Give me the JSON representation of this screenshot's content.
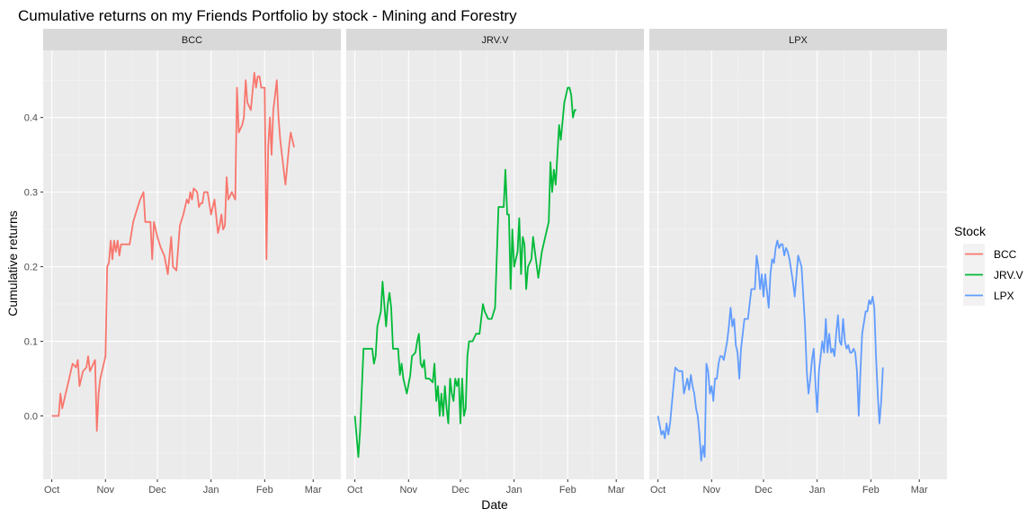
{
  "chart_data": {
    "type": "line",
    "title": "Cumulative returns on my Friends Portfolio by stock - Mining and Forestry",
    "xlabel": "Date",
    "ylabel": "Cumulative returns",
    "x_tick_labels": [
      "Oct",
      "Nov",
      "Dec",
      "Jan",
      "Feb",
      "Mar"
    ],
    "y_ticks": [
      0.0,
      0.1,
      0.2,
      0.3,
      0.4
    ],
    "y_tick_labels": [
      "0.0",
      "0.1",
      "0.2",
      "0.3",
      "0.4"
    ],
    "ylim": [
      -0.085,
      0.49
    ],
    "xlim_days": [
      -5,
      167
    ],
    "grid": true,
    "legend": {
      "title": "Stock",
      "position": "right"
    },
    "colors": {
      "BCC": "#F8766D",
      "JRV.V": "#00BA38",
      "LPX": "#619CFF"
    },
    "series": [
      {
        "name": "BCC",
        "points": [
          [
            0,
            0.0
          ],
          [
            4,
            0.0
          ],
          [
            5,
            0.03
          ],
          [
            6,
            0.01
          ],
          [
            8,
            0.03
          ],
          [
            10,
            0.05
          ],
          [
            12,
            0.07
          ],
          [
            14,
            0.065
          ],
          [
            15,
            0.075
          ],
          [
            16,
            0.04
          ],
          [
            18,
            0.06
          ],
          [
            20,
            0.065
          ],
          [
            21,
            0.08
          ],
          [
            22,
            0.06
          ],
          [
            25,
            0.075
          ],
          [
            26,
            -0.02
          ],
          [
            27,
            0.03
          ],
          [
            28,
            0.05
          ],
          [
            30,
            0.07
          ],
          [
            31,
            0.08
          ],
          [
            32,
            0.2
          ],
          [
            33,
            0.205
          ],
          [
            34,
            0.235
          ],
          [
            35,
            0.21
          ],
          [
            36,
            0.235
          ],
          [
            37,
            0.22
          ],
          [
            38,
            0.235
          ],
          [
            39,
            0.215
          ],
          [
            40,
            0.23
          ],
          [
            42,
            0.23
          ],
          [
            45,
            0.23
          ],
          [
            47,
            0.26
          ],
          [
            49,
            0.275
          ],
          [
            51,
            0.29
          ],
          [
            53,
            0.3
          ],
          [
            54,
            0.26
          ],
          [
            57,
            0.26
          ],
          [
            58,
            0.21
          ],
          [
            59,
            0.26
          ],
          [
            61,
            0.24
          ],
          [
            63,
            0.225
          ],
          [
            65,
            0.215
          ],
          [
            67,
            0.19
          ],
          [
            69,
            0.24
          ],
          [
            70,
            0.2
          ],
          [
            72,
            0.195
          ],
          [
            74,
            0.255
          ],
          [
            76,
            0.27
          ],
          [
            78,
            0.29
          ],
          [
            79,
            0.285
          ],
          [
            80,
            0.3
          ],
          [
            81,
            0.29
          ],
          [
            82,
            0.305
          ],
          [
            84,
            0.3
          ],
          [
            85,
            0.28
          ],
          [
            86,
            0.285
          ],
          [
            87,
            0.285
          ],
          [
            88,
            0.3
          ],
          [
            90,
            0.3
          ],
          [
            92,
            0.27
          ],
          [
            94,
            0.29
          ],
          [
            96,
            0.245
          ],
          [
            97,
            0.255
          ],
          [
            98,
            0.27
          ],
          [
            99,
            0.25
          ],
          [
            100,
            0.255
          ],
          [
            101,
            0.32
          ],
          [
            102,
            0.29
          ],
          [
            104,
            0.3
          ],
          [
            106,
            0.29
          ],
          [
            107,
            0.44
          ],
          [
            108,
            0.38
          ],
          [
            110,
            0.39
          ],
          [
            111,
            0.4
          ],
          [
            112,
            0.45
          ],
          [
            113,
            0.42
          ],
          [
            115,
            0.41
          ],
          [
            117,
            0.46
          ],
          [
            118,
            0.44
          ],
          [
            119,
            0.455
          ],
          [
            120,
            0.455
          ],
          [
            121,
            0.44
          ],
          [
            123,
            0.44
          ],
          [
            124,
            0.21
          ],
          [
            125,
            0.36
          ],
          [
            126,
            0.4
          ],
          [
            127,
            0.35
          ],
          [
            128,
            0.41
          ],
          [
            129,
            0.43
          ],
          [
            130,
            0.45
          ],
          [
            131,
            0.4
          ],
          [
            132,
            0.37
          ],
          [
            135,
            0.31
          ],
          [
            137,
            0.36
          ],
          [
            138,
            0.38
          ],
          [
            140,
            0.36
          ]
        ]
      },
      {
        "name": "JRV.V",
        "points": [
          [
            0,
            0.0
          ],
          [
            2,
            -0.055
          ],
          [
            3,
            -0.02
          ],
          [
            5,
            0.09
          ],
          [
            8,
            0.09
          ],
          [
            10,
            0.09
          ],
          [
            11,
            0.07
          ],
          [
            12,
            0.08
          ],
          [
            13,
            0.12
          ],
          [
            15,
            0.14
          ],
          [
            16,
            0.18
          ],
          [
            17,
            0.15
          ],
          [
            18,
            0.12
          ],
          [
            19,
            0.15
          ],
          [
            20,
            0.165
          ],
          [
            21,
            0.145
          ],
          [
            22,
            0.09
          ],
          [
            25,
            0.09
          ],
          [
            26,
            0.055
          ],
          [
            27,
            0.07
          ],
          [
            28,
            0.05
          ],
          [
            30,
            0.03
          ],
          [
            32,
            0.055
          ],
          [
            33,
            0.08
          ],
          [
            35,
            0.085
          ],
          [
            36,
            0.1
          ],
          [
            37,
            0.11
          ],
          [
            38,
            0.07
          ],
          [
            39,
            0.065
          ],
          [
            40,
            0.075
          ],
          [
            41,
            0.05
          ],
          [
            43,
            0.05
          ],
          [
            45,
            0.045
          ],
          [
            46,
            0.07
          ],
          [
            47,
            0.02
          ],
          [
            48,
            0.04
          ],
          [
            49,
            0.0
          ],
          [
            50,
            0.03
          ],
          [
            51,
            0.0
          ],
          [
            52,
            0.04
          ],
          [
            53,
            0.01
          ],
          [
            54,
            -0.01
          ],
          [
            55,
            0.05
          ],
          [
            56,
            0.03
          ],
          [
            57,
            0.02
          ],
          [
            58,
            0.05
          ],
          [
            59,
            0.04
          ],
          [
            60,
            0.05
          ],
          [
            61,
            -0.01
          ],
          [
            62,
            0.05
          ],
          [
            63,
            0.0
          ],
          [
            64,
            0.01
          ],
          [
            65,
            0.08
          ],
          [
            66,
            0.1
          ],
          [
            68,
            0.1
          ],
          [
            70,
            0.11
          ],
          [
            72,
            0.11
          ],
          [
            74,
            0.15
          ],
          [
            75,
            0.14
          ],
          [
            77,
            0.13
          ],
          [
            79,
            0.13
          ],
          [
            81,
            0.145
          ],
          [
            83,
            0.28
          ],
          [
            86,
            0.28
          ],
          [
            87,
            0.33
          ],
          [
            88,
            0.27
          ],
          [
            89,
            0.27
          ],
          [
            90,
            0.17
          ],
          [
            91,
            0.25
          ],
          [
            92,
            0.2
          ],
          [
            93,
            0.21
          ],
          [
            94,
            0.22
          ],
          [
            95,
            0.265
          ],
          [
            96,
            0.19
          ],
          [
            97,
            0.24
          ],
          [
            98,
            0.23
          ],
          [
            99,
            0.17
          ],
          [
            100,
            0.2
          ],
          [
            102,
            0.21
          ],
          [
            103,
            0.24
          ],
          [
            104,
            0.22
          ],
          [
            106,
            0.185
          ],
          [
            108,
            0.22
          ],
          [
            110,
            0.24
          ],
          [
            112,
            0.26
          ],
          [
            113,
            0.34
          ],
          [
            114,
            0.3
          ],
          [
            115,
            0.33
          ],
          [
            116,
            0.31
          ],
          [
            118,
            0.39
          ],
          [
            119,
            0.37
          ],
          [
            121,
            0.42
          ],
          [
            123,
            0.44
          ],
          [
            124,
            0.44
          ],
          [
            125,
            0.43
          ],
          [
            126,
            0.4
          ],
          [
            127,
            0.41
          ],
          [
            128,
            0.41
          ]
        ]
      },
      {
        "name": "LPX",
        "points": [
          [
            0,
            0.0
          ],
          [
            2,
            -0.025
          ],
          [
            3,
            -0.02
          ],
          [
            4,
            -0.03
          ],
          [
            5,
            -0.01
          ],
          [
            6,
            -0.025
          ],
          [
            7,
            -0.01
          ],
          [
            8,
            0.015
          ],
          [
            9,
            0.04
          ],
          [
            10,
            0.065
          ],
          [
            12,
            0.06
          ],
          [
            14,
            0.06
          ],
          [
            15,
            0.03
          ],
          [
            16,
            0.04
          ],
          [
            17,
            0.05
          ],
          [
            18,
            0.035
          ],
          [
            19,
            0.055
          ],
          [
            20,
            0.04
          ],
          [
            21,
            0.03
          ],
          [
            22,
            0.01
          ],
          [
            23,
            0.0
          ],
          [
            24,
            -0.025
          ],
          [
            25,
            -0.06
          ],
          [
            26,
            -0.04
          ],
          [
            27,
            -0.055
          ],
          [
            28,
            0.07
          ],
          [
            29,
            0.06
          ],
          [
            30,
            0.03
          ],
          [
            31,
            0.04
          ],
          [
            32,
            0.02
          ],
          [
            33,
            0.05
          ],
          [
            34,
            0.05
          ],
          [
            35,
            0.07
          ],
          [
            36,
            0.08
          ],
          [
            37,
            0.08
          ],
          [
            38,
            0.075
          ],
          [
            40,
            0.1
          ],
          [
            41,
            0.12
          ],
          [
            42,
            0.145
          ],
          [
            43,
            0.12
          ],
          [
            44,
            0.13
          ],
          [
            45,
            0.095
          ],
          [
            46,
            0.085
          ],
          [
            47,
            0.05
          ],
          [
            48,
            0.09
          ],
          [
            50,
            0.13
          ],
          [
            52,
            0.13
          ],
          [
            54,
            0.17
          ],
          [
            56,
            0.17
          ],
          [
            57,
            0.215
          ],
          [
            58,
            0.2
          ],
          [
            59,
            0.17
          ],
          [
            60,
            0.19
          ],
          [
            61,
            0.16
          ],
          [
            62,
            0.19
          ],
          [
            64,
            0.145
          ],
          [
            65,
            0.19
          ],
          [
            66,
            0.21
          ],
          [
            67,
            0.205
          ],
          [
            68,
            0.225
          ],
          [
            69,
            0.235
          ],
          [
            70,
            0.225
          ],
          [
            71,
            0.23
          ],
          [
            72,
            0.23
          ],
          [
            73,
            0.215
          ],
          [
            74,
            0.225
          ],
          [
            75,
            0.22
          ],
          [
            76,
            0.21
          ],
          [
            78,
            0.18
          ],
          [
            79,
            0.16
          ],
          [
            81,
            0.215
          ],
          [
            83,
            0.2
          ],
          [
            84,
            0.16
          ],
          [
            85,
            0.12
          ],
          [
            86,
            0.06
          ],
          [
            87,
            0.03
          ],
          [
            88,
            0.05
          ],
          [
            89,
            0.075
          ],
          [
            90,
            0.09
          ],
          [
            91,
            0.045
          ],
          [
            92,
            0.005
          ],
          [
            93,
            0.06
          ],
          [
            94,
            0.08
          ],
          [
            95,
            0.1
          ],
          [
            96,
            0.085
          ],
          [
            97,
            0.13
          ],
          [
            98,
            0.085
          ],
          [
            99,
            0.11
          ],
          [
            100,
            0.085
          ],
          [
            101,
            0.09
          ],
          [
            102,
            0.08
          ],
          [
            103,
            0.11
          ],
          [
            104,
            0.135
          ],
          [
            105,
            0.1
          ],
          [
            106,
            0.095
          ],
          [
            107,
            0.13
          ],
          [
            108,
            0.1
          ],
          [
            109,
            0.09
          ],
          [
            110,
            0.095
          ],
          [
            111,
            0.085
          ],
          [
            112,
            0.085
          ],
          [
            113,
            0.09
          ],
          [
            114,
            0.085
          ],
          [
            115,
            0.06
          ],
          [
            116,
            0.0
          ],
          [
            117,
            0.06
          ],
          [
            118,
            0.11
          ],
          [
            120,
            0.14
          ],
          [
            121,
            0.14
          ],
          [
            122,
            0.155
          ],
          [
            123,
            0.15
          ],
          [
            124,
            0.16
          ],
          [
            125,
            0.145
          ],
          [
            126,
            0.08
          ],
          [
            127,
            0.03
          ],
          [
            128,
            -0.01
          ],
          [
            129,
            0.02
          ],
          [
            130,
            0.065
          ]
        ]
      }
    ]
  }
}
